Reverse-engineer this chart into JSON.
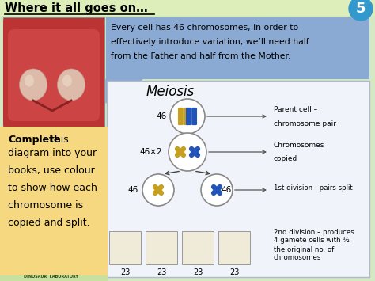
{
  "title": "Where it all goes on…",
  "slide_number": "5",
  "bg_color": "#d4e8c2",
  "header_box_color": "#8aaad4",
  "header_text_line1": "Every cell has 46 chromosomes, in order to",
  "header_text_line2": "effectively introduce variation, we’ll need half",
  "header_text_line3": "from the Father and half from the Mother.",
  "meiosis_title": "Meiosis",
  "left_box_color": "#f5d880",
  "left_box_bold": "Complete",
  "left_box_rest": " this\ndiagram into your\nbooks, use colour\nto show how each\nchromosome is\ncopied and split.",
  "label_46_1": "46",
  "label_46x2": "46×2",
  "label_46_left": "46",
  "label_46_right": "46",
  "label_23s": [
    "23",
    "23",
    "23",
    "23"
  ],
  "annot1_line1": "Parent cell –",
  "annot1_line2": "chromosome pair",
  "annot2_line1": "Chromosomes",
  "annot2_line2": "copied",
  "annot3": "1st division - pairs split",
  "annot4_line1": "2nd division – produces",
  "annot4_line2": "4 gamete cells with ½",
  "annot4_line3": "the original no. of",
  "annot4_line4": "chromosomes",
  "chrom_gold": "#c8a020",
  "chrom_blue": "#2255bb",
  "slide_num_bg": "#3399cc",
  "meiosis_box_bg": "#f0f4fa",
  "meiosis_box_border": "#b0b8cc"
}
